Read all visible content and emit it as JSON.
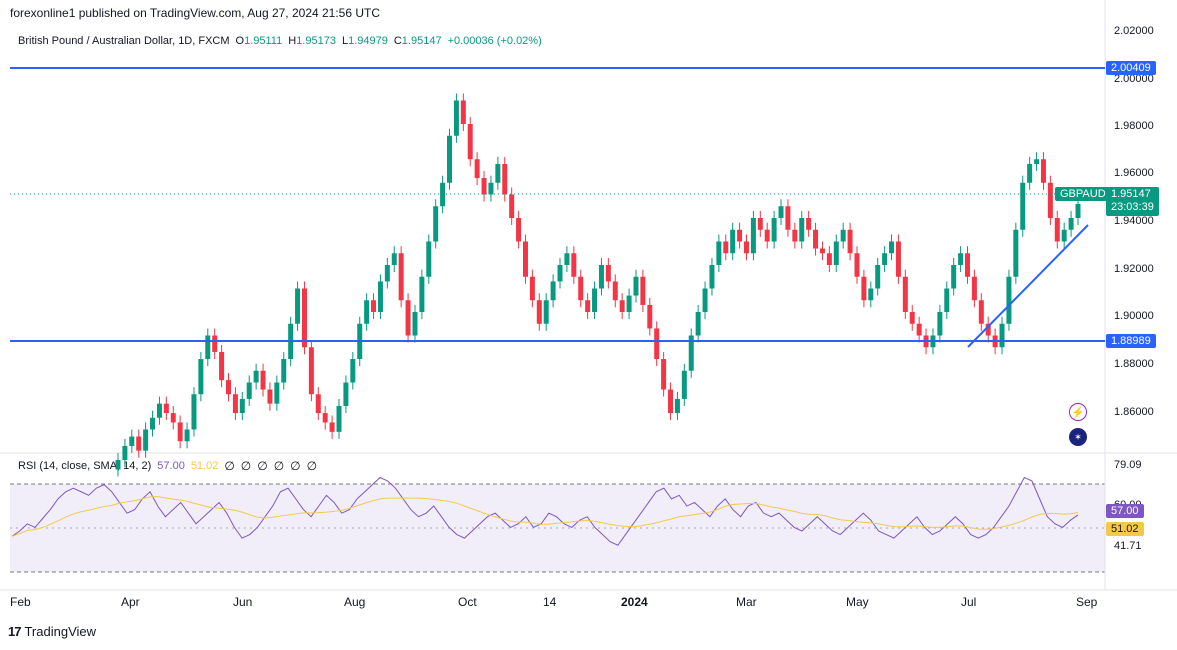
{
  "header": {
    "published": "forexonline1 published on TradingView.com, Aug 27, 2024 21:56 UTC"
  },
  "legend": {
    "symbol": "British Pound / Australian Dollar, 1D, FXCM",
    "o_label": "O",
    "o_value": "1.95111",
    "h_label": "H",
    "h_value": "1.95173",
    "l_label": "L",
    "l_value": "1.94979",
    "c_label": "C",
    "c_value": "1.95147",
    "change": "+0.00036 (+0.02%)"
  },
  "rsi_legend": {
    "label": "RSI (14, close, SMA, 14, 2)",
    "rsi_value": "57.00",
    "sma_value": "51.02",
    "eyes": [
      "∅",
      "∅",
      "∅",
      "∅",
      "∅",
      "∅"
    ]
  },
  "price_axis": {
    "ticks": [
      "2.02000",
      "2.00000",
      "1.98000",
      "1.96000",
      "1.94000",
      "1.92000",
      "1.90000",
      "1.88000",
      "1.86000"
    ],
    "resistance_label": "2.00409",
    "support_label": "1.88989",
    "symbol_tag": "GBPAUD",
    "last_price": "1.95147",
    "countdown": "23:03:39"
  },
  "rsi_axis": {
    "ticks": [
      "79.09",
      "60.00",
      "41.71"
    ],
    "rsi_badge": "57.00",
    "sma_badge": "51.02"
  },
  "time_axis": {
    "labels": [
      "Feb",
      "Apr",
      "Jun",
      "Aug",
      "Oct",
      "14",
      "2024",
      "Mar",
      "May",
      "Jul",
      "Sep"
    ]
  },
  "footer": {
    "brand": "TradingView",
    "logo": "17"
  },
  "colors": {
    "up": "#089981",
    "down": "#f23645",
    "line_blue": "#2962ff",
    "rsi": "#7e57c2",
    "sma": "#f2c94c"
  },
  "chart_data": {
    "type": "candlestick",
    "title": "British Pound / Australian Dollar, 1D, FXCM",
    "ylim": [
      1.845,
      2.025
    ],
    "horizontal_lines": [
      2.00409,
      1.88989
    ],
    "trendline": {
      "from": [
        1.8865
      ],
      "to": [
        1.9375
      ]
    },
    "closes": [
      1.842,
      1.848,
      1.852,
      1.846,
      1.855,
      1.86,
      1.866,
      1.862,
      1.858,
      1.85,
      1.855,
      1.87,
      1.885,
      1.895,
      1.888,
      1.876,
      1.87,
      1.862,
      1.868,
      1.875,
      1.88,
      1.872,
      1.866,
      1.875,
      1.885,
      1.9,
      1.915,
      1.89,
      1.87,
      1.862,
      1.858,
      1.854,
      1.865,
      1.875,
      1.885,
      1.9,
      1.91,
      1.905,
      1.918,
      1.925,
      1.93,
      1.91,
      1.895,
      1.905,
      1.92,
      1.935,
      1.95,
      1.96,
      1.98,
      1.995,
      1.985,
      1.97,
      1.962,
      1.955,
      1.96,
      1.968,
      1.955,
      1.945,
      1.935,
      1.92,
      1.91,
      1.9,
      1.91,
      1.918,
      1.925,
      1.93,
      1.92,
      1.91,
      1.905,
      1.915,
      1.925,
      1.918,
      1.91,
      1.905,
      1.912,
      1.92,
      1.908,
      1.898,
      1.885,
      1.872,
      1.862,
      1.868,
      1.88,
      1.895,
      1.905,
      1.915,
      1.925,
      1.935,
      1.93,
      1.94,
      1.935,
      1.93,
      1.945,
      1.94,
      1.935,
      1.945,
      1.95,
      1.94,
      1.935,
      1.945,
      1.94,
      1.932,
      1.93,
      1.925,
      1.935,
      1.94,
      1.93,
      1.92,
      1.91,
      1.915,
      1.925,
      1.93,
      1.935,
      1.92,
      1.905,
      1.9,
      1.895,
      1.89,
      1.895,
      1.905,
      1.915,
      1.925,
      1.93,
      1.92,
      1.91,
      1.9,
      1.895,
      1.89,
      1.9,
      1.92,
      1.94,
      1.96,
      1.968,
      1.97,
      1.96,
      1.945,
      1.935,
      1.94,
      1.945,
      1.951
    ],
    "rsi": [
      45,
      48,
      52,
      50,
      55,
      60,
      66,
      70,
      72,
      70,
      68,
      72,
      74,
      70,
      64,
      58,
      60,
      66,
      70,
      62,
      56,
      60,
      64,
      58,
      52,
      56,
      60,
      64,
      58,
      50,
      44,
      46,
      50,
      56,
      62,
      70,
      72,
      66,
      60,
      56,
      62,
      68,
      64,
      58,
      60,
      66,
      70,
      74,
      78,
      76,
      72,
      66,
      60,
      56,
      58,
      62,
      56,
      50,
      46,
      44,
      48,
      52,
      56,
      58,
      54,
      50,
      52,
      56,
      50,
      52,
      58,
      56,
      52,
      50,
      54,
      56,
      50,
      46,
      42,
      40,
      46,
      52,
      58,
      64,
      70,
      72,
      66,
      68,
      62,
      64,
      60,
      56,
      62,
      66,
      60,
      56,
      62,
      64,
      58,
      56,
      58,
      54,
      50,
      48,
      52,
      56,
      52,
      48,
      46,
      50,
      54,
      58,
      54,
      48,
      46,
      44,
      48,
      52,
      56,
      50,
      46,
      48,
      52,
      56,
      52,
      46,
      44,
      46,
      50,
      56,
      62,
      70,
      78,
      76,
      66,
      56,
      52,
      50,
      54,
      57
    ]
  }
}
